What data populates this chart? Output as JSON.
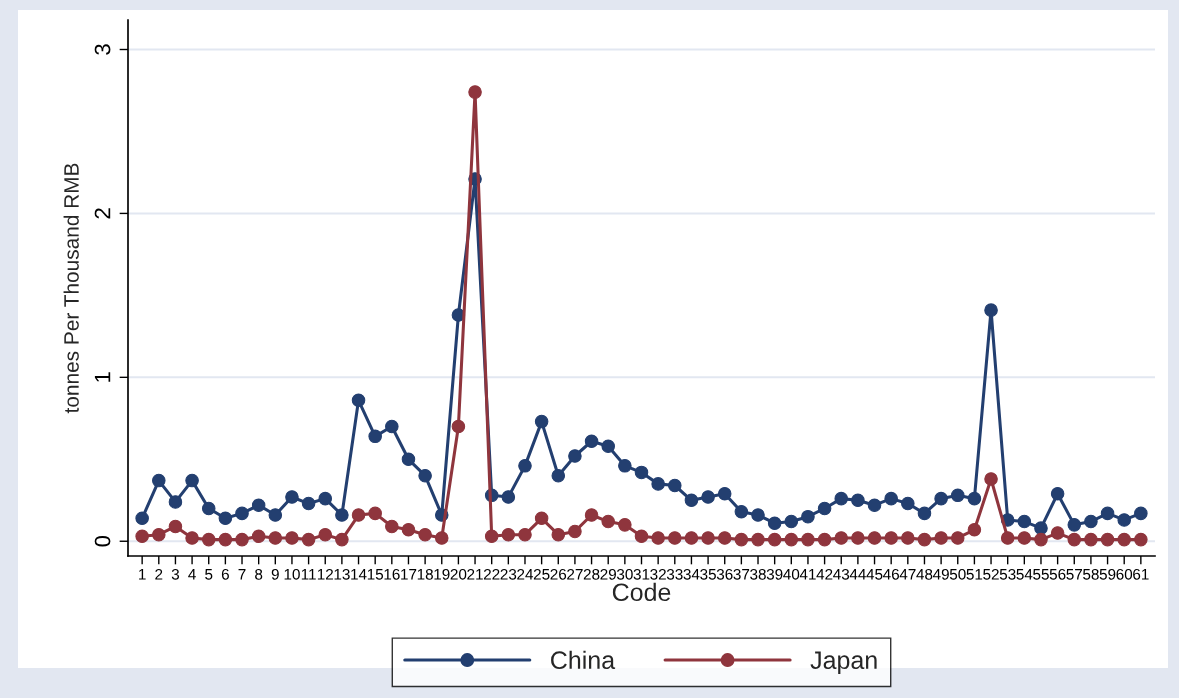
{
  "chart_data": {
    "type": "line",
    "xlabel": "Code",
    "ylabel": "tonnes Per Thousand RMB",
    "categories": [
      "1",
      "2",
      "3",
      "4",
      "5",
      "6",
      "7",
      "8",
      "9",
      "10",
      "11",
      "12",
      "13",
      "14",
      "15",
      "16",
      "17",
      "18",
      "19",
      "20",
      "21",
      "22",
      "23",
      "24",
      "25",
      "26",
      "27",
      "28",
      "29",
      "30",
      "31",
      "32",
      "33",
      "34",
      "35",
      "36",
      "37",
      "38",
      "39",
      "40",
      "41",
      "42",
      "43",
      "44",
      "45",
      "46",
      "47",
      "48",
      "49",
      "50",
      "51",
      "52",
      "53",
      "54",
      "55",
      "56",
      "57",
      "58",
      "59",
      "60",
      "61"
    ],
    "series": [
      {
        "name": "China",
        "color": "#233f70",
        "values": [
          0.14,
          0.37,
          0.24,
          0.37,
          0.2,
          0.14,
          0.17,
          0.22,
          0.16,
          0.27,
          0.23,
          0.26,
          0.16,
          0.86,
          0.64,
          0.7,
          0.5,
          0.4,
          0.16,
          1.38,
          2.21,
          0.28,
          0.27,
          0.46,
          0.73,
          0.4,
          0.52,
          0.61,
          0.58,
          0.46,
          0.42,
          0.35,
          0.34,
          0.25,
          0.27,
          0.29,
          0.18,
          0.16,
          0.11,
          0.12,
          0.15,
          0.2,
          0.26,
          0.25,
          0.22,
          0.26,
          0.23,
          0.17,
          0.26,
          0.28,
          0.26,
          1.41,
          0.13,
          0.12,
          0.08,
          0.29,
          0.1,
          0.12,
          0.17,
          0.13,
          0.17
        ]
      },
      {
        "name": "Japan",
        "color": "#8f353d",
        "values": [
          0.03,
          0.04,
          0.09,
          0.02,
          0.01,
          0.01,
          0.01,
          0.03,
          0.02,
          0.02,
          0.01,
          0.04,
          0.01,
          0.16,
          0.17,
          0.09,
          0.07,
          0.04,
          0.02,
          0.7,
          2.74,
          0.03,
          0.04,
          0.04,
          0.14,
          0.04,
          0.06,
          0.16,
          0.12,
          0.1,
          0.03,
          0.02,
          0.02,
          0.02,
          0.02,
          0.02,
          0.01,
          0.01,
          0.01,
          0.01,
          0.01,
          0.01,
          0.02,
          0.02,
          0.02,
          0.02,
          0.02,
          0.01,
          0.02,
          0.02,
          0.07,
          0.38,
          0.02,
          0.02,
          0.01,
          0.05,
          0.01,
          0.01,
          0.01,
          0.01,
          0.01
        ]
      }
    ],
    "ylim": [
      -0.09,
      3.18
    ],
    "yticks": [
      0,
      1,
      2,
      3
    ],
    "grid": "y",
    "legend": "bottom",
    "marker": "circle",
    "line_style": "solid"
  }
}
